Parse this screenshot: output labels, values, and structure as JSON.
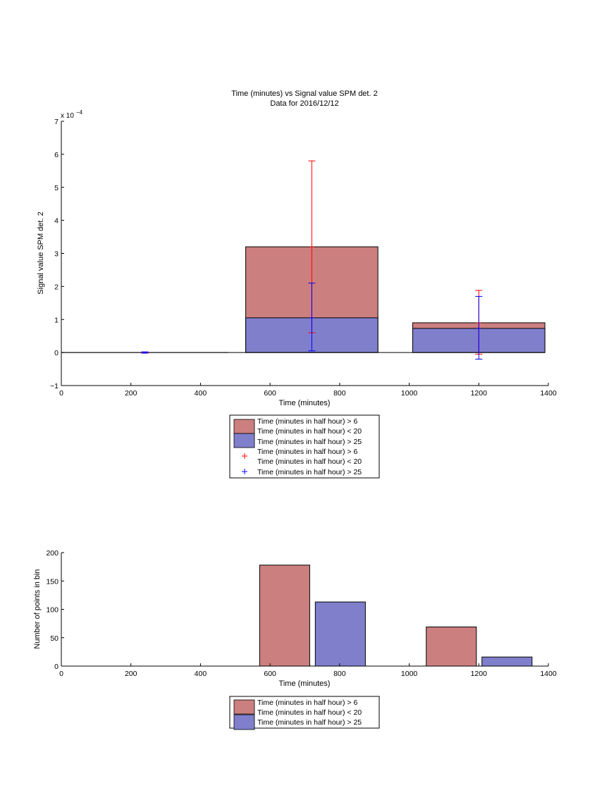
{
  "colors": {
    "red_fill": "#cc7f7f",
    "blue_fill": "#7f7fcc",
    "red_line": "#ff0000",
    "blue_line": "#0000ff",
    "axis": "#000000"
  },
  "legend_entries": [
    {
      "line1": "Time (minutes in half hour) > 6",
      "line2": "Time (minutes in half hour) < 20"
    },
    {
      "line1": "Time (minutes in half hour) > 25",
      "line2": ""
    }
  ],
  "chart_data": [
    {
      "type": "bar",
      "stacked": true,
      "title": "Time (minutes) vs Signal value SPM det. 2",
      "subtitle": "Data for 2016/12/12",
      "xlabel": "Time (minutes)",
      "ylabel": "Signal value SPM det. 2",
      "exponent_label": "x 10",
      "exponent_power": "−4",
      "xlim": [
        0,
        1400
      ],
      "ylim": [
        -1,
        7
      ],
      "x_ticks": [
        "0",
        "200",
        "400",
        "600",
        "800",
        "1000",
        "1200",
        "1400"
      ],
      "y_ticks": [
        "−1",
        "0",
        "1",
        "2",
        "3",
        "4",
        "5",
        "6",
        "7"
      ],
      "grid": false,
      "legend_position": "bottom",
      "bins": [
        {
          "x_start": 0,
          "x_end": 480,
          "red": 0,
          "blue": 0
        },
        {
          "x_start": 530,
          "x_end": 910,
          "red": 3.2,
          "blue": 1.05
        },
        {
          "x_start": 1010,
          "x_end": 1390,
          "red": 0.9,
          "blue": 0.73
        }
      ],
      "error_bars": [
        {
          "series": "red",
          "x": 240,
          "low": 0,
          "high": 0,
          "center": 0
        },
        {
          "series": "blue",
          "x": 240,
          "low": -0.02,
          "high": 0.02,
          "center": 0
        },
        {
          "series": "red",
          "x": 720,
          "low": 0.6,
          "high": 5.8,
          "center": 3.2
        },
        {
          "series": "blue",
          "x": 720,
          "low": 0.05,
          "high": 2.1,
          "center": 1.05
        },
        {
          "series": "red",
          "x": 1200,
          "low": -0.05,
          "high": 1.88,
          "center": 0.9
        },
        {
          "series": "blue",
          "x": 1200,
          "low": -0.2,
          "high": 1.7,
          "center": 0.73
        }
      ],
      "legend": [
        "Time (minutes in half hour) > 6",
        "Time (minutes in half hour) < 20",
        "Time (minutes in half hour) > 25",
        "Time (minutes in half hour) > 6",
        "Time (minutes in half hour) < 20",
        "Time (minutes in half hour) > 25"
      ]
    },
    {
      "type": "bar",
      "xlabel": "Time (minutes)",
      "ylabel": "Number of points in bin",
      "xlim": [
        0,
        1400
      ],
      "ylim": [
        0,
        200
      ],
      "x_ticks": [
        "0",
        "200",
        "400",
        "600",
        "800",
        "1000",
        "1200",
        "1400"
      ],
      "y_ticks": [
        "0",
        "50",
        "100",
        "150",
        "200"
      ],
      "grid": false,
      "legend_position": "bottom",
      "series": [
        {
          "name": "Time (minutes in half hour) > 6 / Time (minutes in half hour) < 20",
          "color": "red",
          "bars": [
            {
              "x_start": 570,
              "x_end": 714,
              "value": 178
            },
            {
              "x_start": 1049,
              "x_end": 1193,
              "value": 69
            }
          ]
        },
        {
          "name": "Time (minutes in half hour) > 25",
          "color": "blue",
          "bars": [
            {
              "x_start": 730,
              "x_end": 874,
              "value": 113
            },
            {
              "x_start": 1209,
              "x_end": 1353,
              "value": 16
            }
          ]
        }
      ]
    }
  ]
}
